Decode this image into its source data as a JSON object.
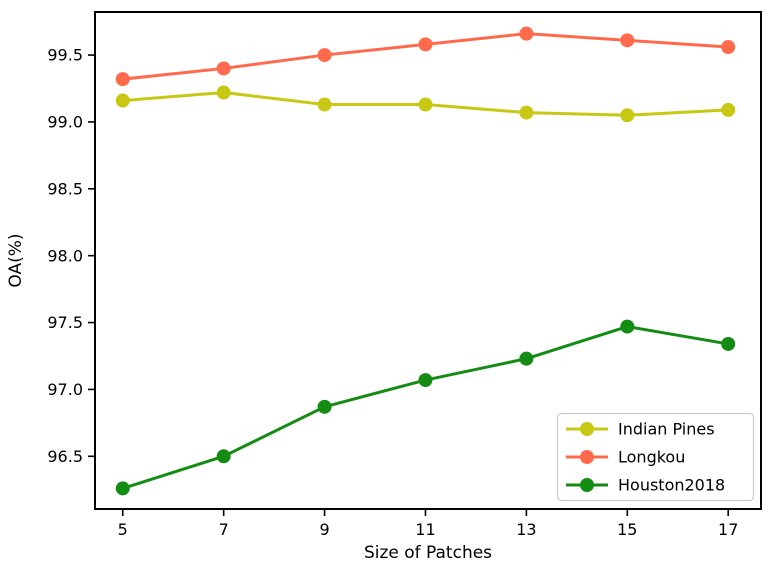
{
  "figure": {
    "background": "#ffffff",
    "text_color": "#000000",
    "spine_color": "#000000",
    "legend_border_color": "#cccccc",
    "legend_background": "#ffffff"
  },
  "chart_data": {
    "type": "line",
    "title": "",
    "xlabel": "Size of Patches",
    "ylabel": "OA(%)",
    "x": [
      5,
      7,
      9,
      11,
      13,
      15,
      17
    ],
    "xticks": [
      5,
      7,
      9,
      11,
      13,
      15,
      17
    ],
    "yticks": [
      96.5,
      97.0,
      97.5,
      98.0,
      98.5,
      99.0,
      99.5
    ],
    "xlim": [
      4.45,
      17.65
    ],
    "ylim": [
      96.106,
      99.822
    ],
    "grid": false,
    "legend_position": "lower right",
    "series": [
      {
        "name": "Indian Pines",
        "color": "#c8c814",
        "values": [
          99.16,
          99.22,
          99.13,
          99.13,
          99.07,
          99.05,
          99.09
        ]
      },
      {
        "name": "Longkou",
        "color": "#ff6a4d",
        "values": [
          99.32,
          99.4,
          99.5,
          99.58,
          99.66,
          99.61,
          99.56
        ]
      },
      {
        "name": "Houston2018",
        "color": "#148c14",
        "values": [
          96.26,
          96.5,
          96.87,
          97.07,
          97.23,
          97.47,
          97.34
        ]
      }
    ]
  }
}
